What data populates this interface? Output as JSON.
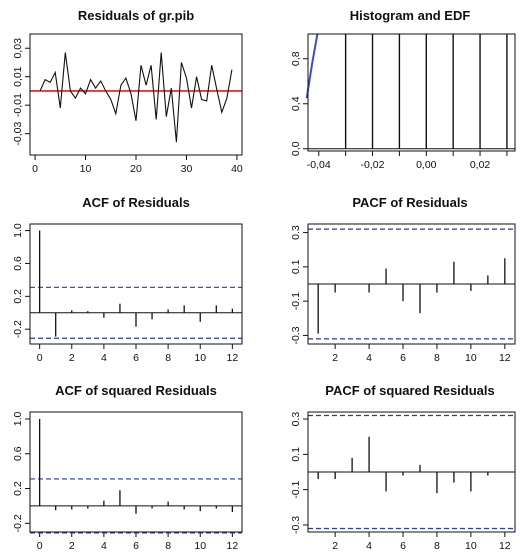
{
  "colors": {
    "zero_line": "#e41a1c",
    "conf_band": "#2b3ba0",
    "edf": "#3a4cc8",
    "ink": "#111111"
  },
  "chart_data": [
    {
      "id": "residuals",
      "type": "line",
      "title": "Residuals of gr.pib",
      "xlim": [
        -1,
        41
      ],
      "ylim": [
        -0.045,
        0.04
      ],
      "xticks": [
        0,
        10,
        20,
        30,
        40
      ],
      "xtick_labels": [
        "0",
        "10",
        "20",
        "30",
        "40"
      ],
      "yticks": [
        -0.03,
        -0.01,
        0.01,
        0.03
      ],
      "ytick_labels": [
        "-0,03",
        "-0,01",
        "0,01",
        "0,03"
      ],
      "hline": 0,
      "x": [
        1,
        2,
        3,
        4,
        5,
        6,
        7,
        8,
        9,
        10,
        11,
        12,
        13,
        14,
        15,
        16,
        17,
        18,
        19,
        20,
        21,
        22,
        23,
        24,
        25,
        26,
        27,
        28,
        29,
        30,
        31,
        32,
        33,
        34,
        35,
        36,
        37,
        38,
        39
      ],
      "values": [
        0.0,
        0.008,
        0.006,
        0.013,
        -0.012,
        0.027,
        0.0,
        -0.005,
        0.002,
        -0.002,
        0.008,
        0.002,
        0.007,
        0.0,
        -0.006,
        -0.016,
        0.004,
        0.009,
        -0.002,
        -0.021,
        0.018,
        0.004,
        0.018,
        -0.02,
        0.027,
        -0.018,
        0.002,
        -0.036,
        0.02,
        0.009,
        -0.012,
        0.01,
        -0.006,
        -0.007,
        0.018,
        0.001,
        -0.015,
        -0.005,
        0.015
      ]
    },
    {
      "id": "histogram",
      "type": "bar",
      "title": "Histogram and EDF",
      "xlim": [
        -0.044,
        0.033
      ],
      "ylim": [
        -0.02,
        1.02
      ],
      "xticks": [
        -0.04,
        -0.03,
        -0.02,
        -0.01,
        0.0,
        0.01,
        0.02,
        0.03
      ],
      "xtick_labels": [
        "-0,04",
        "",
        "-0,02",
        "",
        "0,00",
        "",
        "0,02",
        ""
      ],
      "yticks": [
        0.0,
        0.4,
        0.8
      ],
      "ytick_labels": [
        "0,0",
        "0,4",
        "0,8"
      ],
      "bar_x": [
        -0.03,
        -0.02,
        -0.01,
        0.0,
        0.01,
        0.02,
        0.03
      ],
      "bar_top": 1.02,
      "edf_x": [
        -0.0445,
        -0.0425,
        -0.0405
      ],
      "edf_y": [
        0.45,
        0.75,
        1.02
      ]
    },
    {
      "id": "acf_resid",
      "type": "bar",
      "title": "ACF of Residuals",
      "xlim": [
        -0.6,
        12.6
      ],
      "ylim": [
        -0.38,
        1.08
      ],
      "xticks": [
        0,
        2,
        4,
        6,
        8,
        10,
        12
      ],
      "yticks": [
        -0.2,
        0.2,
        0.6,
        1.0
      ],
      "ytick_labels": [
        "-0.2",
        "0.2",
        "0.6",
        "1.0"
      ],
      "band": [
        0.31,
        -0.31
      ],
      "lags": [
        0,
        1,
        2,
        3,
        4,
        5,
        6,
        7,
        8,
        9,
        10,
        11,
        12
      ],
      "values": [
        1.0,
        -0.29,
        0.03,
        0.02,
        -0.06,
        0.11,
        -0.17,
        -0.08,
        0.04,
        0.09,
        -0.11,
        0.09,
        0.05
      ]
    },
    {
      "id": "pacf_resid",
      "type": "bar",
      "title": "PACF of Residuals",
      "xlim": [
        0.4,
        12.6
      ],
      "ylim": [
        -0.35,
        0.35
      ],
      "xticks": [
        2,
        4,
        6,
        8,
        10,
        12
      ],
      "yticks": [
        -0.3,
        -0.1,
        0.1,
        0.3
      ],
      "ytick_labels": [
        "-0.3",
        "-0.1",
        "0.1",
        "0.3"
      ],
      "band": [
        0.32,
        -0.32
      ],
      "lags": [
        1,
        2,
        3,
        4,
        5,
        6,
        7,
        8,
        9,
        10,
        11,
        12
      ],
      "values": [
        -0.29,
        -0.05,
        0.0,
        -0.05,
        0.09,
        -0.1,
        -0.17,
        -0.05,
        0.13,
        -0.04,
        0.05,
        0.15
      ]
    },
    {
      "id": "acf_sq",
      "type": "bar",
      "title": "ACF of squared Residuals",
      "xlim": [
        -0.6,
        12.6
      ],
      "ylim": [
        -0.3,
        1.08
      ],
      "xticks": [
        0,
        2,
        4,
        6,
        8,
        10,
        12
      ],
      "yticks": [
        -0.2,
        0.2,
        0.6,
        1.0
      ],
      "ytick_labels": [
        "-0.2",
        "0.2",
        "0.6",
        "1.0"
      ],
      "band": [
        0.31,
        -0.31
      ],
      "lags": [
        0,
        1,
        2,
        3,
        4,
        5,
        6,
        7,
        8,
        9,
        10,
        11,
        12
      ],
      "values": [
        1.0,
        -0.05,
        -0.04,
        -0.03,
        0.06,
        0.18,
        -0.09,
        -0.03,
        0.05,
        -0.04,
        -0.06,
        -0.03,
        -0.07
      ]
    },
    {
      "id": "pacf_sq",
      "type": "bar",
      "title": "PACF of squared Residuals",
      "xlim": [
        0.4,
        12.6
      ],
      "ylim": [
        -0.34,
        0.34
      ],
      "xticks": [
        2,
        4,
        6,
        8,
        10,
        12
      ],
      "yticks": [
        -0.3,
        -0.1,
        0.1,
        0.3
      ],
      "ytick_labels": [
        "-0.3",
        "-0.1",
        "0.1",
        "0.3"
      ],
      "band": [
        0.32,
        -0.32
      ],
      "lags": [
        1,
        2,
        3,
        4,
        5,
        6,
        7,
        8,
        9,
        10,
        11,
        12
      ],
      "values": [
        -0.04,
        -0.04,
        0.08,
        0.2,
        -0.11,
        -0.02,
        0.04,
        -0.12,
        -0.06,
        -0.11,
        -0.02,
        0.0
      ]
    }
  ]
}
